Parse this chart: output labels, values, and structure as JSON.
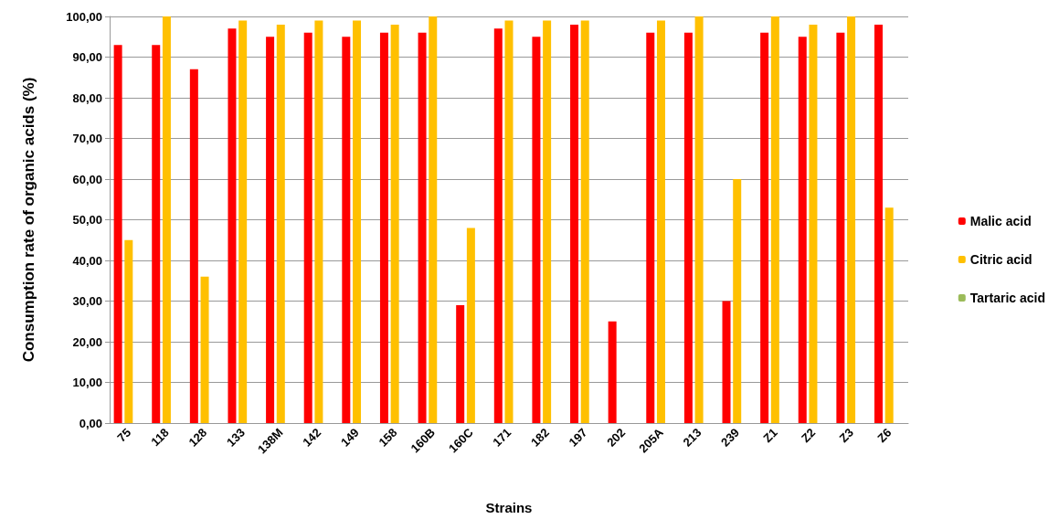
{
  "chart_data": {
    "type": "bar",
    "xlabel": "Strains",
    "ylabel": "Consumption rate of organic acids (%)",
    "categories": [
      "75",
      "118",
      "128",
      "133",
      "138M",
      "142",
      "149",
      "158",
      "160B",
      "160C",
      "171",
      "182",
      "197",
      "202",
      "205A",
      "213",
      "239",
      "Z1",
      "Z2",
      "Z3",
      "Z6"
    ],
    "series": [
      {
        "name": "Malic acid",
        "color": "#ff0000",
        "values": [
          93,
          93,
          87,
          97,
          95,
          96,
          95,
          96,
          96,
          29,
          97,
          95,
          98,
          25,
          96,
          96,
          30,
          96,
          95,
          96,
          98
        ]
      },
      {
        "name": "Citric acid",
        "color": "#ffc000",
        "values": [
          45,
          100,
          36,
          99,
          98,
          99,
          99,
          98,
          100,
          48,
          99,
          99,
          99,
          0,
          99,
          100,
          60,
          100,
          98,
          100,
          53
        ]
      },
      {
        "name": "Tartaric acid",
        "color": "#9bbb59",
        "values": [
          0,
          0,
          0,
          0,
          0,
          0,
          0,
          0,
          0,
          0,
          0,
          0,
          0,
          0,
          0,
          0,
          0,
          0,
          0,
          0,
          0
        ]
      }
    ],
    "ylim": [
      0,
      100
    ],
    "yticks": [
      {
        "value": 0,
        "label": "0,00"
      },
      {
        "value": 10,
        "label": "10,00"
      },
      {
        "value": 20,
        "label": "20,00"
      },
      {
        "value": 30,
        "label": "30,00"
      },
      {
        "value": 40,
        "label": "40,00"
      },
      {
        "value": 50,
        "label": "50,00"
      },
      {
        "value": 60,
        "label": "60,00"
      },
      {
        "value": 70,
        "label": "70,00"
      },
      {
        "value": 80,
        "label": "80,00"
      },
      {
        "value": 90,
        "label": "90,00"
      },
      {
        "value": 100,
        "label": "100,00"
      }
    ],
    "grid": "y",
    "legend": "right"
  }
}
